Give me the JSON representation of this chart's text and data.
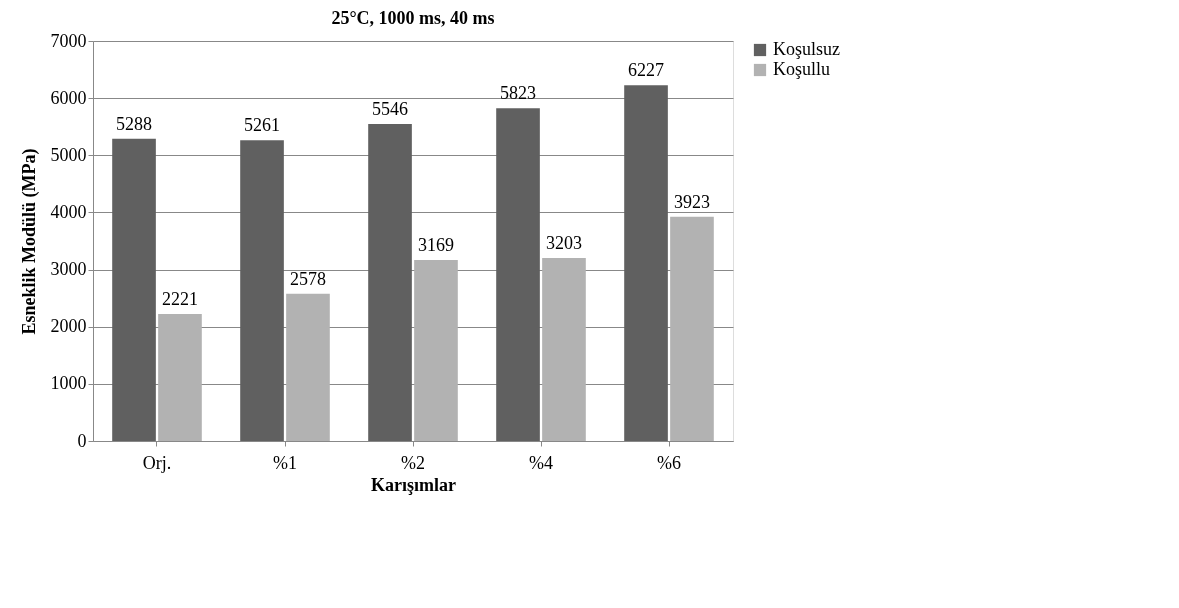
{
  "chart_data": {
    "type": "bar",
    "title": "25°C, 1000 ms, 40 ms",
    "xlabel": "Karışımlar",
    "ylabel": "Esneklik Modülü (MPa)",
    "categories": [
      "Orj.",
      "%1",
      "%2",
      "%4",
      "%6"
    ],
    "series": [
      {
        "name": "Koşulsuz",
        "color": "#606060",
        "values": [
          5288,
          5261,
          5546,
          5823,
          6227
        ]
      },
      {
        "name": "Koşullu",
        "color": "#b2b2b2",
        "values": [
          2221,
          2578,
          3169,
          3203,
          3923
        ]
      }
    ],
    "ylim": [
      0,
      7000
    ],
    "yticks": [
      0,
      1000,
      2000,
      3000,
      4000,
      5000,
      6000,
      7000
    ],
    "grid": "y",
    "legend": "right",
    "data_labels": true
  }
}
